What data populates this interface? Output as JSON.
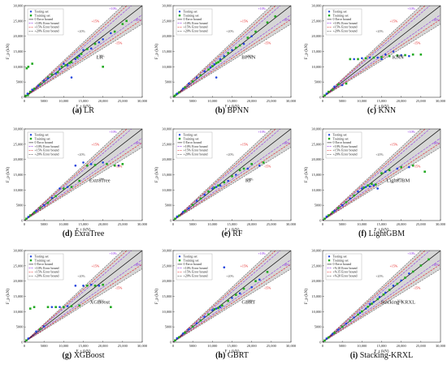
{
  "legend": {
    "testing": "Testing set",
    "training": "Training set",
    "zero": "0 Error bound",
    "ten": "+10% Error bound",
    "fifteen": "+15% Error bound",
    "twenty": "+20% Error bound",
    "ten_i": "+%10 Error bound",
    "fifteen_i": "+%15 Error bound",
    "twenty_i": "+%20 Error bound"
  },
  "axes": {
    "xlabel": "F_t (kN)",
    "ylabel": "F_p (kN)",
    "ticks": [
      "0",
      "5000",
      "10,000",
      "15,000",
      "20,000",
      "25,000",
      "30,000"
    ]
  },
  "bound_labels": {
    "plus10": "+10%",
    "plus15": "+15%",
    "plus20": "+20%",
    "minus10": "-10%",
    "minus15": "-15%",
    "minus20": "-20%"
  },
  "colors": {
    "testing": "#2244dd",
    "training": "#22aa22",
    "zero_line": "#111111",
    "ten_line": "#8a2be2",
    "fifteen_line": "#e01010",
    "twenty_line": "#555555",
    "band": "#c8c8c8"
  },
  "chart_data": [
    {
      "type": "scatter",
      "caption_letter": "(a)",
      "caption_text": "LR",
      "model_label": "LR",
      "xlim": [
        0,
        30000
      ],
      "ylim": [
        0,
        30000
      ],
      "series": [
        {
          "name": "Testing set",
          "x": [
            800,
            2000,
            3500,
            5000,
            6000,
            8000,
            9000,
            10000,
            11000,
            12000,
            13000,
            14000,
            15000,
            17000,
            19000,
            20000,
            22000
          ],
          "y": [
            1200,
            2500,
            3800,
            5500,
            6200,
            7800,
            9200,
            11000,
            10500,
            6500,
            12500,
            13500,
            15500,
            16000,
            18000,
            19000,
            21000
          ]
        },
        {
          "name": "Training set",
          "x": [
            300,
            600,
            900,
            1500,
            2500,
            4000,
            5000,
            6000,
            7000,
            8500,
            9500,
            10500,
            11500,
            12000,
            13500,
            14500,
            16000,
            18000,
            20000,
            23000,
            25000,
            26000,
            1000,
            2000
          ],
          "y": [
            500,
            9500,
            700,
            1800,
            2800,
            4200,
            5200,
            6500,
            7500,
            8200,
            10000,
            10500,
            11200,
            11500,
            13000,
            14200,
            15800,
            17500,
            10000,
            21500,
            24000,
            25000,
            10000,
            11000
          ]
        }
      ]
    },
    {
      "type": "scatter",
      "caption_letter": "(b)",
      "caption_text": "BPNN",
      "model_label": "BPNN",
      "xlim": [
        0,
        30000
      ],
      "ylim": [
        0,
        30000
      ],
      "series": [
        {
          "name": "Testing set",
          "x": [
            1000,
            2500,
            4000,
            6000,
            8000,
            9500,
            10500,
            11000,
            12000,
            13000,
            15000,
            18000,
            20000
          ],
          "y": [
            1200,
            2800,
            4500,
            6500,
            8500,
            9800,
            10800,
            6500,
            12500,
            13500,
            15500,
            17500,
            20000
          ]
        },
        {
          "name": "Training set",
          "x": [
            400,
            800,
            1500,
            3000,
            5000,
            7000,
            9000,
            10000,
            11000,
            11500,
            12000,
            13000,
            14000,
            16000,
            17000,
            19000,
            21000,
            24000,
            26000
          ],
          "y": [
            500,
            900,
            1600,
            3200,
            5200,
            7200,
            9100,
            10200,
            11200,
            11500,
            12000,
            13200,
            14500,
            16200,
            17000,
            19500,
            21500,
            24500,
            26500
          ]
        }
      ]
    },
    {
      "type": "scatter",
      "caption_letter": "(c)",
      "caption_text": "KNN",
      "model_label": "KNN",
      "xlim": [
        0,
        30000
      ],
      "ylim": [
        0,
        30000
      ],
      "series": [
        {
          "name": "Testing set",
          "x": [
            1000,
            3000,
            5000,
            8000,
            10000,
            12000,
            14000,
            15000,
            16000,
            18000,
            20000,
            22000
          ],
          "y": [
            1200,
            3500,
            4000,
            12500,
            12800,
            13000,
            13000,
            12500,
            14000,
            15000,
            13800,
            13500
          ]
        },
        {
          "name": "Training set",
          "x": [
            500,
            1500,
            2500,
            4000,
            6000,
            7000,
            9000,
            11000,
            13000,
            15000,
            17000,
            19000,
            21000,
            23000,
            25000
          ],
          "y": [
            600,
            1800,
            2500,
            4200,
            4500,
            12500,
            12500,
            12800,
            13000,
            13200,
            13500,
            13700,
            13800,
            14000,
            14000
          ]
        }
      ]
    },
    {
      "type": "scatter",
      "caption_letter": "(d)",
      "caption_text": "ExraTree",
      "model_label": "ExtraTree",
      "xlim": [
        0,
        30000
      ],
      "ylim": [
        0,
        30000
      ],
      "series": [
        {
          "name": "Testing set",
          "x": [
            1000,
            3000,
            5000,
            7000,
            9000,
            11000,
            13000,
            15000,
            17000,
            20000,
            24000
          ],
          "y": [
            1200,
            3200,
            5000,
            7500,
            10500,
            11000,
            18000,
            19000,
            18500,
            19000,
            18000
          ]
        },
        {
          "name": "Training set",
          "x": [
            500,
            1500,
            2500,
            4000,
            6000,
            8000,
            10000,
            12000,
            14000,
            16000,
            18000,
            21000,
            23000,
            25000
          ],
          "y": [
            600,
            1700,
            2600,
            4100,
            5800,
            8000,
            10500,
            11000,
            13000,
            18000,
            18200,
            18500,
            18000,
            18500
          ]
        }
      ]
    },
    {
      "type": "scatter",
      "caption_letter": "(e)",
      "caption_text": "RF",
      "model_label": "RF",
      "xlim": [
        0,
        30000
      ],
      "ylim": [
        0,
        30000
      ],
      "series": [
        {
          "name": "Testing set",
          "x": [
            1000,
            2500,
            4000,
            6000,
            8000,
            10000,
            11000,
            12000,
            14000,
            16000,
            19000,
            22000
          ],
          "y": [
            1300,
            2800,
            4000,
            6500,
            8500,
            10500,
            11000,
            11500,
            13000,
            15000,
            17000,
            18000
          ]
        },
        {
          "name": "Training set",
          "x": [
            500,
            1500,
            3000,
            5000,
            7000,
            9000,
            10500,
            11500,
            13000,
            15000,
            17000,
            18000,
            20000,
            23000
          ],
          "y": [
            600,
            1600,
            3100,
            5100,
            7200,
            9500,
            10800,
            11500,
            12500,
            14500,
            16500,
            17000,
            18500,
            19000
          ]
        }
      ]
    },
    {
      "type": "scatter",
      "caption_letter": "(f)",
      "caption_text": "LightGBM",
      "model_label": "LightGBM",
      "xlim": [
        0,
        30000
      ],
      "ylim": [
        0,
        30000
      ],
      "series": [
        {
          "name": "Testing set",
          "x": [
            1000,
            3000,
            5000,
            7000,
            9000,
            10000,
            11000,
            12000,
            13000,
            14000,
            16000,
            19000,
            22000
          ],
          "y": [
            1300,
            3200,
            5000,
            7200,
            9500,
            10500,
            11000,
            11200,
            11500,
            10500,
            16000,
            17000,
            17500
          ]
        },
        {
          "name": "Training set",
          "x": [
            500,
            1500,
            2500,
            4000,
            6000,
            8000,
            10500,
            11500,
            12500,
            13500,
            15000,
            17000,
            20000,
            23000,
            26000
          ],
          "y": [
            600,
            1700,
            2700,
            4100,
            6000,
            8200,
            10800,
            11500,
            12000,
            11800,
            15500,
            16500,
            17500,
            18000,
            16000
          ]
        }
      ]
    },
    {
      "type": "scatter",
      "caption_letter": "(g)",
      "caption_text": "XGBoost",
      "model_label": "XGBoost",
      "xlim": [
        0,
        30000
      ],
      "ylim": [
        0,
        30000
      ],
      "series": [
        {
          "name": "Testing set",
          "x": [
            1000,
            3000,
            5000,
            7000,
            9000,
            11000,
            13000,
            15000,
            17000,
            19000
          ],
          "y": [
            1200,
            3500,
            5200,
            11500,
            11500,
            11800,
            18500,
            18500,
            18800,
            18500
          ]
        },
        {
          "name": "Training set",
          "x": [
            500,
            1500,
            2500,
            4000,
            6000,
            8000,
            10000,
            12000,
            14000,
            16000,
            18000,
            20000,
            22000
          ],
          "y": [
            600,
            11000,
            11500,
            4200,
            11500,
            11500,
            11500,
            11800,
            12000,
            18500,
            18500,
            18800,
            11500
          ]
        }
      ]
    },
    {
      "type": "scatter",
      "caption_letter": "(h)",
      "caption_text": "GBRT",
      "model_label": "GBRT",
      "xlim": [
        0,
        30000
      ],
      "ylim": [
        0,
        30000
      ],
      "series": [
        {
          "name": "Testing set",
          "x": [
            1000,
            2500,
            4000,
            6000,
            8000,
            10000,
            11000,
            12000,
            13000,
            15000,
            17000,
            20000,
            22000
          ],
          "y": [
            1300,
            2800,
            4200,
            6200,
            8300,
            10500,
            11000,
            11500,
            24500,
            14500,
            16000,
            18000,
            20500
          ]
        },
        {
          "name": "Training set",
          "x": [
            500,
            1500,
            3000,
            5000,
            7000,
            9000,
            10500,
            11500,
            12500,
            14000,
            16000,
            18000,
            21000,
            24000
          ],
          "y": [
            600,
            1600,
            3100,
            5100,
            7100,
            9100,
            10800,
            11200,
            12000,
            13500,
            15500,
            17500,
            20000,
            23000
          ]
        }
      ]
    },
    {
      "type": "scatter",
      "caption_letter": "(i)",
      "caption_text": "Stacking-KRXL",
      "model_label": "Stacking-KRXL",
      "xlim": [
        0,
        30000
      ],
      "ylim": [
        0,
        30000
      ],
      "series": [
        {
          "name": "Testing set",
          "x": [
            1000,
            2500,
            4000,
            6000,
            8000,
            9500,
            11000,
            12000,
            13000,
            14500,
            16000,
            18000,
            20000,
            22000
          ],
          "y": [
            1200,
            2700,
            4100,
            6100,
            8100,
            9600,
            11000,
            12500,
            13200,
            14800,
            16200,
            18500,
            20200,
            22500
          ]
        },
        {
          "name": "Training set",
          "x": [
            500,
            1500,
            3000,
            5000,
            7000,
            9000,
            10000,
            11500,
            12500,
            14000,
            15500,
            17000,
            19000,
            21000,
            23000,
            25000,
            27000
          ],
          "y": [
            550,
            1550,
            3050,
            5050,
            7050,
            9050,
            10050,
            11600,
            12600,
            14100,
            15600,
            17100,
            19100,
            21100,
            23100,
            25100,
            27100
          ]
        }
      ]
    }
  ]
}
